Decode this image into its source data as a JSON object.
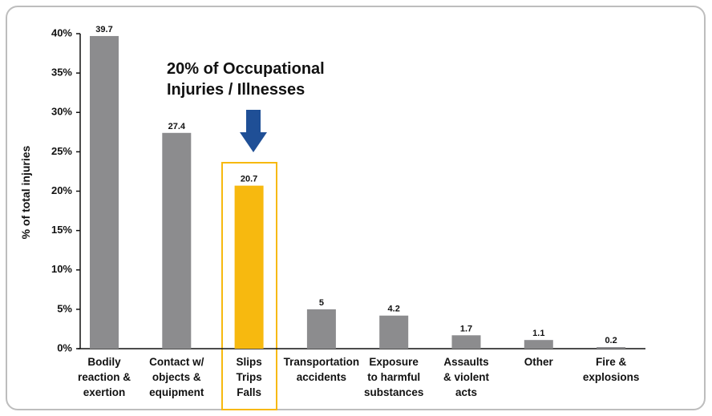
{
  "chart_data": {
    "type": "bar",
    "ylabel": "% of total injuries",
    "categories": [
      "Bodily\nreaction &\nexertion",
      "Contact w/\nobjects &\nequipment",
      "Slips\nTrips\nFalls",
      "Transportation\naccidents",
      "Exposure\nto harmful\nsubstances",
      "Assaults\n& violent\nacts",
      "Other",
      "Fire &\nexplosions"
    ],
    "values": [
      39.7,
      27.4,
      20.7,
      5,
      4.2,
      1.7,
      1.1,
      0.2
    ],
    "colors": [
      "#8c8c8e",
      "#8c8c8e",
      "#f7b90f",
      "#8c8c8e",
      "#8c8c8e",
      "#8c8c8e",
      "#8c8c8e",
      "#8c8c8e"
    ],
    "ylim": [
      0,
      40
    ],
    "yticks": [
      {
        "value": 0,
        "label": "0%"
      },
      {
        "value": 5,
        "label": "5%"
      },
      {
        "value": 10,
        "label": "10%"
      },
      {
        "value": 15,
        "label": "15%"
      },
      {
        "value": 20,
        "label": "20%"
      },
      {
        "value": 25,
        "label": "25%"
      },
      {
        "value": 30,
        "label": "30%"
      },
      {
        "value": 35,
        "label": "35%"
      },
      {
        "value": 40,
        "label": "40%"
      }
    ],
    "annotation": "20% of Occupational\nInjuries / Illnesses"
  }
}
